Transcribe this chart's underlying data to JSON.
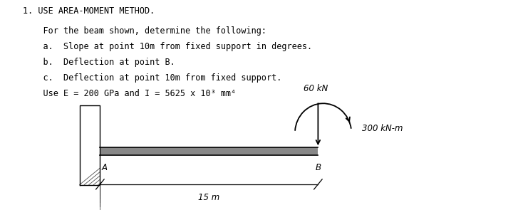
{
  "title_line1": "1. USE AREA-MOMENT METHOD.",
  "title_line2": "    For the beam shown, determine the following:",
  "item_a": "    a.  Slope at point 10m from fixed support in degrees.",
  "item_b": "    b.  Deflection at point B.",
  "item_c": "    c.  Deflection at point 10m from fixed support.",
  "item_use": "    Use E = 200 GPa and I = 5625 x 10³ mm⁴",
  "load_label": "60 kN",
  "moment_label": "300 kN-m",
  "span_label": "15 m",
  "point_A": "A",
  "point_B": "B",
  "bg_color": "#ffffff",
  "text_color": "#000000",
  "font_size_text": 8.5,
  "diagram_font_size": 8.5
}
